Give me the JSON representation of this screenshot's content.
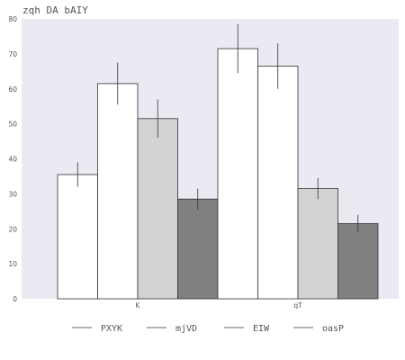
{
  "chart_data": {
    "type": "bar",
    "title": "zqh DA bAIY",
    "xlabel": "",
    "ylabel": "",
    "categories": [
      "K",
      "qT"
    ],
    "ylim": [
      0,
      80
    ],
    "yticks": [
      0,
      10,
      20,
      30,
      40,
      50,
      60,
      70,
      80
    ],
    "grid": false,
    "legend": "bottom-center",
    "series": [
      {
        "name": "PXYK",
        "values": [
          35.5,
          71.5
        ],
        "errors": [
          3.5,
          7.0
        ],
        "color": "#ffffff"
      },
      {
        "name": "mjVD",
        "values": [
          61.5,
          66.5
        ],
        "errors": [
          6.0,
          6.5
        ],
        "color": "#ffffff"
      },
      {
        "name": "EIW",
        "values": [
          51.5,
          31.5
        ],
        "errors": [
          5.5,
          3.0
        ],
        "color": "#d3d3d3"
      },
      {
        "name": "oasP",
        "values": [
          28.5,
          21.5
        ],
        "errors": [
          3.0,
          2.5
        ],
        "color": "#808080"
      }
    ],
    "display_order": [
      {
        "series": 0,
        "category": 0
      },
      {
        "series": 1,
        "category": 0
      },
      {
        "series": 2,
        "category": 0
      },
      {
        "series": 3,
        "category": 0
      },
      {
        "series": 0,
        "category": 1
      },
      {
        "series": 1,
        "category": 1
      },
      {
        "series": 2,
        "category": 1
      },
      {
        "series": 3,
        "category": 1
      }
    ],
    "background": "#eaeaf2"
  }
}
